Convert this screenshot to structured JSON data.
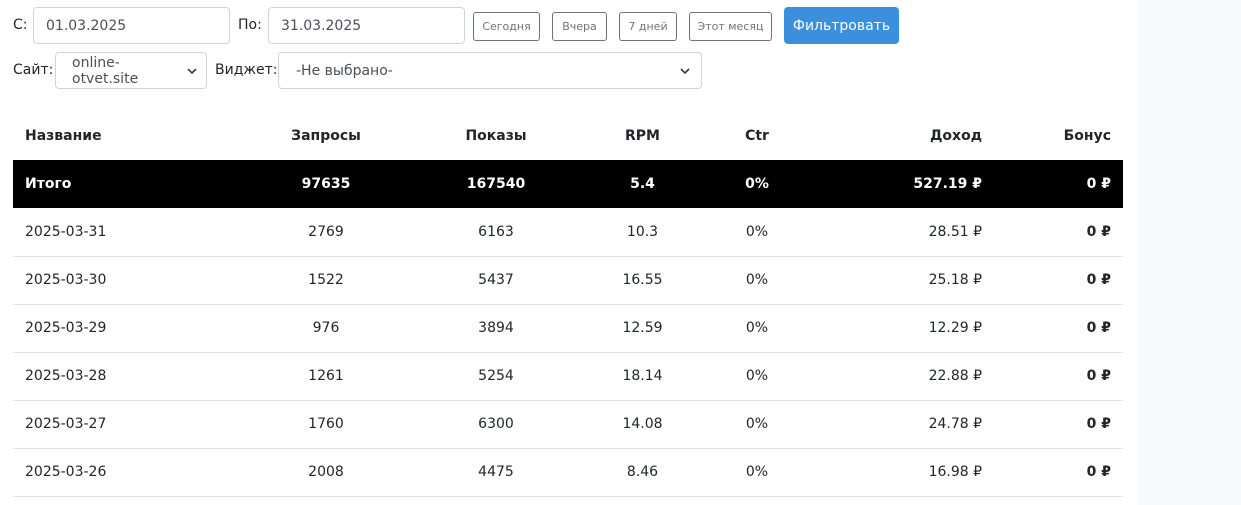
{
  "filter": {
    "from_label": "С:",
    "from_value": "01.03.2025",
    "to_label": "По:",
    "to_value": "31.03.2025",
    "quick_buttons": [
      "Сегодня",
      "Вчера",
      "7 дней",
      "Этот месяц"
    ],
    "submit_label": "Фильтровать",
    "site_label": "Сайт:",
    "site_value": "online-otvet.site",
    "widget_label": "Виджет:",
    "widget_value": "-Не выбрано-"
  },
  "table": {
    "headers": [
      "Название",
      "Запросы",
      "Показы",
      "RPM",
      "Ctr",
      "Доход",
      "Бонус"
    ],
    "total": [
      "Итого",
      "97635",
      "167540",
      "5.4",
      "0%",
      "527.19 ₽",
      "0 ₽"
    ],
    "rows": [
      [
        "2025-03-31",
        "2769",
        "6163",
        "10.3",
        "0%",
        "28.51 ₽",
        "0 ₽"
      ],
      [
        "2025-03-30",
        "1522",
        "5437",
        "16.55",
        "0%",
        "25.18 ₽",
        "0 ₽"
      ],
      [
        "2025-03-29",
        "976",
        "3894",
        "12.59",
        "0%",
        "12.29 ₽",
        "0 ₽"
      ],
      [
        "2025-03-28",
        "1261",
        "5254",
        "18.14",
        "0%",
        "22.88 ₽",
        "0 ₽"
      ],
      [
        "2025-03-27",
        "1760",
        "6300",
        "14.08",
        "0%",
        "24.78 ₽",
        "0 ₽"
      ],
      [
        "2025-03-26",
        "2008",
        "4475",
        "8.46",
        "0%",
        "16.98 ₽",
        "0 ₽"
      ]
    ]
  },
  "icons": {
    "select_caret": "chevron-down-icon"
  },
  "colors": {
    "primary": "#3b8fdc",
    "total_row_bg": "#000000",
    "gutter_bg": "#f8f9fa"
  }
}
